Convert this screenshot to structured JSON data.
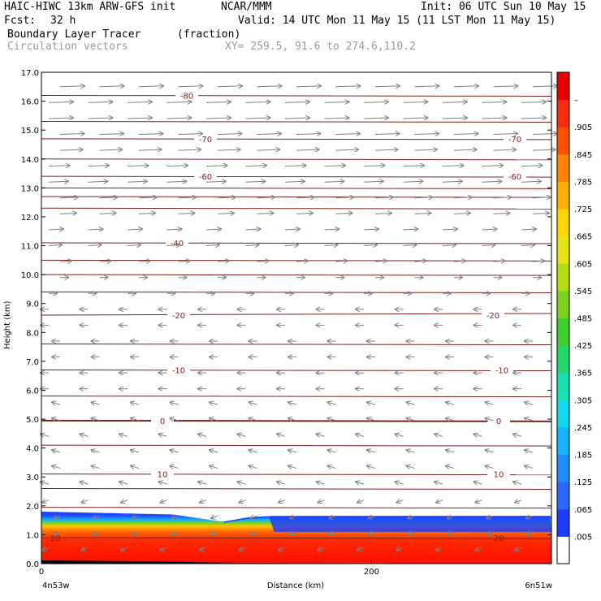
{
  "header": {
    "title_left": "HAIC-HIWC 13km ARW-GFS init",
    "title_mid": "NCAR/MMM",
    "init": "Init: 06 UTC Sun 10 May 15",
    "fcst_label": "Fcst:",
    "fcst_value": "32 h",
    "valid": "Valid: 14 UTC Mon 11 May 15 (11 LST Mon 11 May 15)",
    "field1": "Boundary Layer Tracer",
    "field1_units": "(fraction)",
    "field2": "Circulation vectors",
    "xy": "XY= 259.5, 91.6 to 274.6,110.2"
  },
  "chart_data": {
    "type": "heatmap",
    "xlabel": "Distance (km)",
    "ylabel": "Height (km)",
    "x_ticks": [
      "0",
      "200"
    ],
    "x_endpoints": [
      "4n53w",
      "6n51w"
    ],
    "xlim": [
      0,
      309
    ],
    "ylim": [
      0.0,
      17.0
    ],
    "y_ticks": [
      "0.0",
      "1.0",
      "2.0",
      "3.0",
      "4.0",
      "5.0",
      "6.0",
      "7.0",
      "8.0",
      "9.0",
      "10.0",
      "11.0",
      "12.0",
      "13.0",
      "14.0",
      "15.0",
      "16.0",
      "17.0"
    ],
    "colorbar_labels": [
      ".005",
      ".065",
      ".125",
      ".185",
      ".245",
      ".305",
      ".365",
      ".425",
      ".485",
      ".545",
      ".605",
      ".665",
      ".725",
      ".785",
      ".845",
      ".905",
      "–"
    ],
    "colorbar_colors": [
      "#ffffff",
      "#1e3cff",
      "#2a66ff",
      "#1f8dff",
      "#12b4ff",
      "#0fd9ef",
      "#18e0b0",
      "#22d86a",
      "#3ccf2c",
      "#7ad21b",
      "#b4dd10",
      "#e5e511",
      "#ffd500",
      "#ffae00",
      "#ff8200",
      "#ff5000",
      "#f82a10",
      "#e80000"
    ],
    "boundary_layer": {
      "top_left_km": 1.8,
      "top_right_km": 1.65,
      "dip_x_km": 110,
      "dip_top_km": 1.45,
      "values": "high (≈0.9–1.0) in lowest ~1 km, decreasing to ≈0.005 at the top"
    },
    "temperature_contours": {
      "labels": [
        "-80",
        "-70",
        "-60",
        "-40",
        "-20",
        "-10",
        "0",
        "10",
        "20"
      ],
      "levels_km": [
        16.2,
        14.7,
        13.4,
        11.1,
        8.6,
        6.7,
        4.95,
        3.1,
        0.9
      ]
    },
    "wind": {
      "upper_level_km": [
        10.5,
        17.0
      ],
      "upper_direction": "eastward",
      "lower_direction": "westward"
    }
  }
}
